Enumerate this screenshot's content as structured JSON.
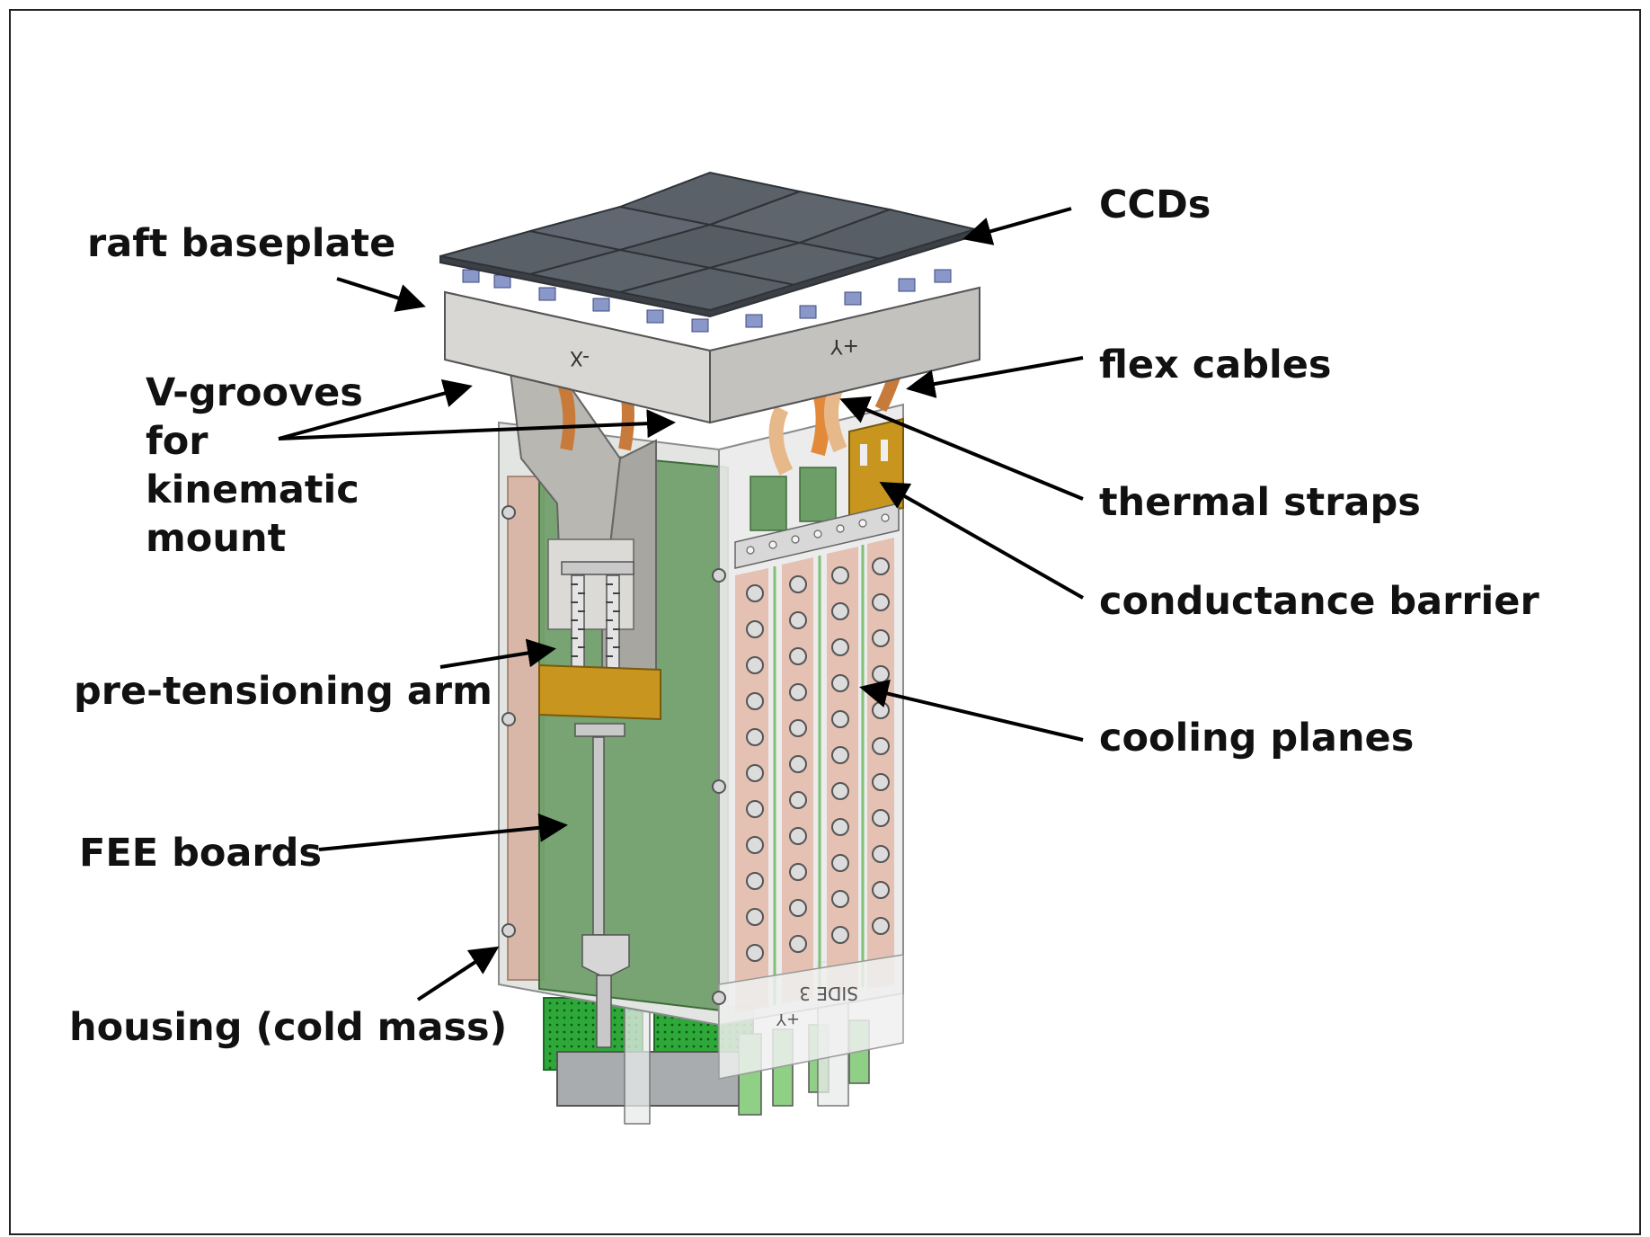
{
  "labels": {
    "raft_baseplate": "raft baseplate",
    "v_grooves": [
      "V-grooves",
      "for",
      "kinematic",
      "mount"
    ],
    "pre_tensioning_arm": "pre-tensioning arm",
    "fee_boards": "FEE boards",
    "housing": "housing (cold mass)",
    "ccds": "CCDs",
    "flex_cables": "flex cables",
    "thermal_straps": "thermal straps",
    "conductance_barrier": "conductance barrier",
    "cooling_planes": "cooling planes"
  },
  "markings": {
    "minus_x": "-X",
    "plus_y": "+Y",
    "side3": "SIDE 3",
    "plus_y_lower": "+Y"
  },
  "colors": {
    "ccd": "#5a6068",
    "baseplate": "#cfcdca",
    "fee_green": "#6e9e68",
    "copper": "#c98a5a",
    "gold": "#c8961e",
    "connector_green": "#2fa83a",
    "housing_glass": "#e6e7e6"
  }
}
